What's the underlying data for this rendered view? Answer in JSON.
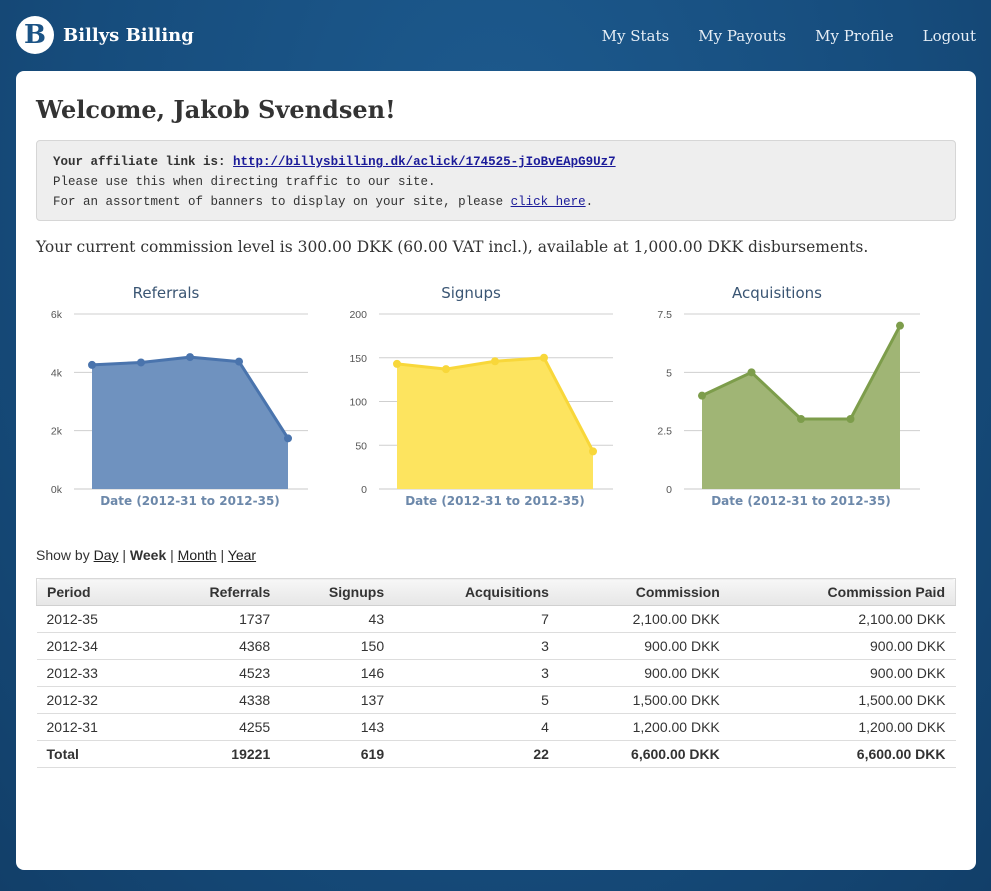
{
  "brand": {
    "logo_letter": "B",
    "name": "Billys Billing"
  },
  "nav": {
    "items": [
      "My Stats",
      "My Payouts",
      "My Profile",
      "Logout"
    ]
  },
  "welcome": "Welcome, Jakob Svendsen!",
  "affiliate": {
    "label": "Your affiliate link is:",
    "link": "http://billysbilling.dk/aclick/174525-jIoBvEApG9Uz7",
    "line2": "Please use this when directing traffic to our site.",
    "line3_prefix": "For an assortment of banners to display on your site, please",
    "line3_link": "click here",
    "line3_suffix": "."
  },
  "commission_text": "Your current commission level is 300.00 DKK (60.00 VAT incl.), available at 1,000.00 DKK disbursements.",
  "chart_data": [
    {
      "type": "area",
      "title": "Referrals",
      "xlabel": "Date (2012-31 to 2012-35)",
      "x": [
        "2012-31",
        "2012-32",
        "2012-33",
        "2012-34",
        "2012-35"
      ],
      "values": [
        4255,
        4338,
        4523,
        4368,
        1737
      ],
      "ylim": [
        0,
        6000
      ],
      "yticks": [
        0,
        2000,
        4000,
        6000
      ],
      "ytick_labels": [
        "0k",
        "2k",
        "4k",
        "6k"
      ],
      "color": "#4a74ad",
      "fill": "#6f92bf",
      "grid": true
    },
    {
      "type": "area",
      "title": "Signups",
      "xlabel": "Date (2012-31 to 2012-35)",
      "x": [
        "2012-31",
        "2012-32",
        "2012-33",
        "2012-34",
        "2012-35"
      ],
      "values": [
        143,
        137,
        146,
        150,
        43
      ],
      "ylim": [
        0,
        200
      ],
      "yticks": [
        0,
        50,
        100,
        150,
        200
      ],
      "ytick_labels": [
        "0",
        "50",
        "100",
        "150",
        "200"
      ],
      "color": "#f8d73a",
      "fill": "#fde45f",
      "grid": true
    },
    {
      "type": "area",
      "title": "Acquisitions",
      "xlabel": "Date (2012-31 to 2012-35)",
      "x": [
        "2012-31",
        "2012-32",
        "2012-33",
        "2012-34",
        "2012-35"
      ],
      "values": [
        4,
        5,
        3,
        3,
        7
      ],
      "ylim": [
        0,
        7.5
      ],
      "yticks": [
        0,
        2.5,
        5,
        7.5
      ],
      "ytick_labels": [
        "0",
        "2.5",
        "5",
        "7.5"
      ],
      "color": "#7d9d4b",
      "fill": "#a0b575",
      "grid": true
    }
  ],
  "showby": {
    "prefix": "Show by",
    "options": [
      "Day",
      "Week",
      "Month",
      "Year"
    ],
    "selected": "Week"
  },
  "table": {
    "headers": [
      "Period",
      "Referrals",
      "Signups",
      "Acquisitions",
      "Commission",
      "Commission Paid"
    ],
    "rows": [
      [
        "2012-35",
        "1737",
        "43",
        "7",
        "2,100.00 DKK",
        "2,100.00 DKK"
      ],
      [
        "2012-34",
        "4368",
        "150",
        "3",
        "900.00 DKK",
        "900.00 DKK"
      ],
      [
        "2012-33",
        "4523",
        "146",
        "3",
        "900.00 DKK",
        "900.00 DKK"
      ],
      [
        "2012-32",
        "4338",
        "137",
        "5",
        "1,500.00 DKK",
        "1,500.00 DKK"
      ],
      [
        "2012-31",
        "4255",
        "143",
        "4",
        "1,200.00 DKK",
        "1,200.00 DKK"
      ]
    ],
    "total": [
      "Total",
      "19221",
      "619",
      "22",
      "6,600.00 DKK",
      "6,600.00 DKK"
    ]
  }
}
